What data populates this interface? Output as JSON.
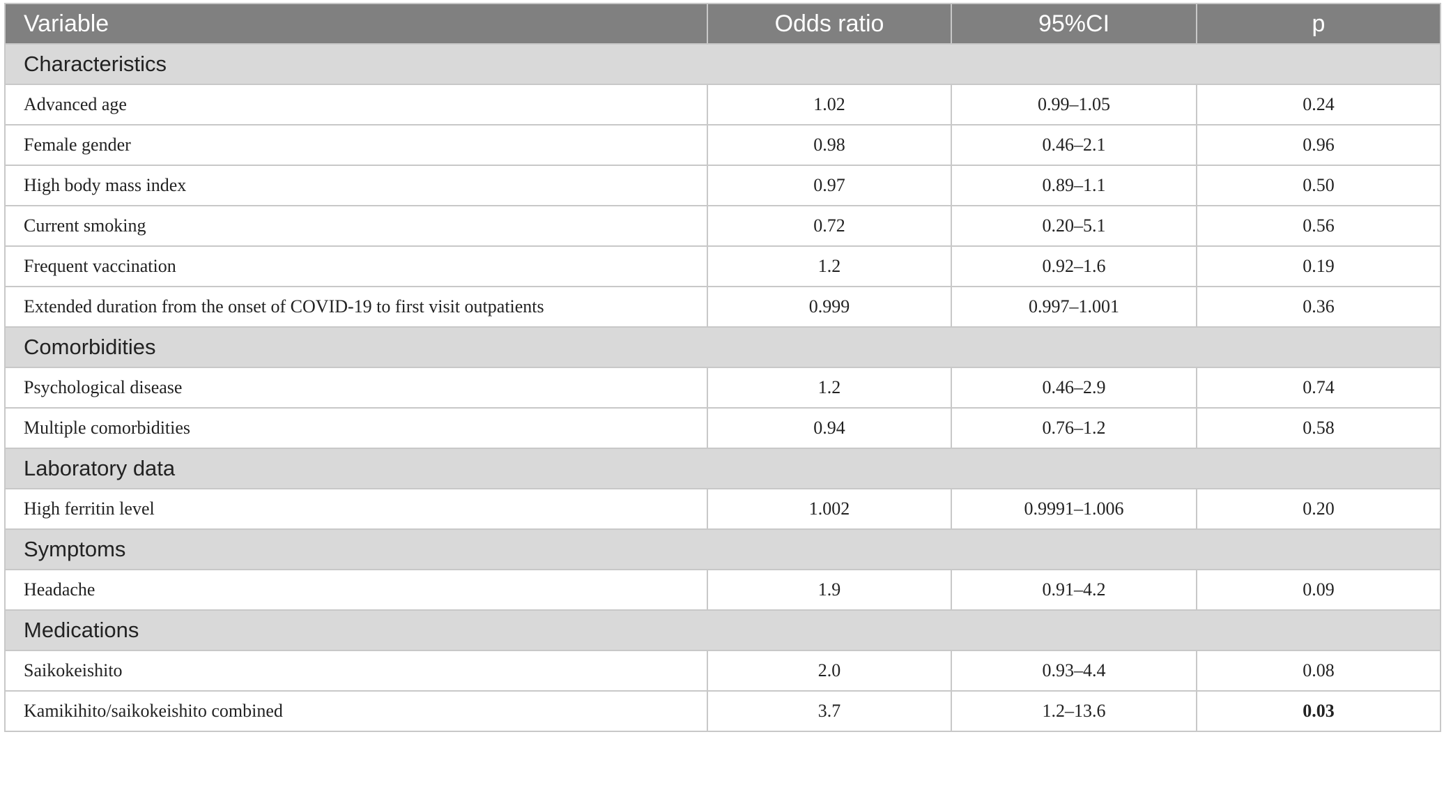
{
  "table": {
    "columns": [
      "Variable",
      "Odds ratio",
      "95%CI",
      "p"
    ],
    "sections": [
      {
        "title": "Characteristics",
        "rows": [
          [
            "Advanced age",
            "1.02",
            "0.99–1.05",
            "0.24"
          ],
          [
            "Female gender",
            "0.98",
            "0.46–2.1",
            "0.96"
          ],
          [
            "High body mass index",
            "0.97",
            "0.89–1.1",
            "0.50"
          ],
          [
            "Current smoking",
            "0.72",
            "0.20–5.1",
            "0.56"
          ],
          [
            "Frequent vaccination",
            "1.2",
            "0.92–1.6",
            "0.19"
          ],
          [
            "Extended duration from the onset of COVID-19 to first visit outpatients",
            "0.999",
            "0.997–1.001",
            "0.36"
          ]
        ]
      },
      {
        "title": "Comorbidities",
        "rows": [
          [
            "Psychological disease",
            "1.2",
            "0.46–2.9",
            "0.74"
          ],
          [
            "Multiple comorbidities",
            "0.94",
            "0.76–1.2",
            "0.58"
          ]
        ]
      },
      {
        "title": "Laboratory data",
        "rows": [
          [
            "High ferritin level",
            "1.002",
            "0.9991–1.006",
            "0.20"
          ]
        ]
      },
      {
        "title": "Symptoms",
        "rows": [
          [
            "Headache",
            "1.9",
            "0.91–4.2",
            "0.09"
          ]
        ]
      },
      {
        "title": "Medications",
        "rows": [
          [
            "Saikokeishito",
            "2.0",
            "0.93–4.4",
            "0.08"
          ],
          [
            "Kamikihito/saikokeishito combined",
            "3.7",
            "1.2–13.6",
            "0.03"
          ]
        ]
      }
    ],
    "bold_cells": [
      "4.1.3"
    ]
  }
}
